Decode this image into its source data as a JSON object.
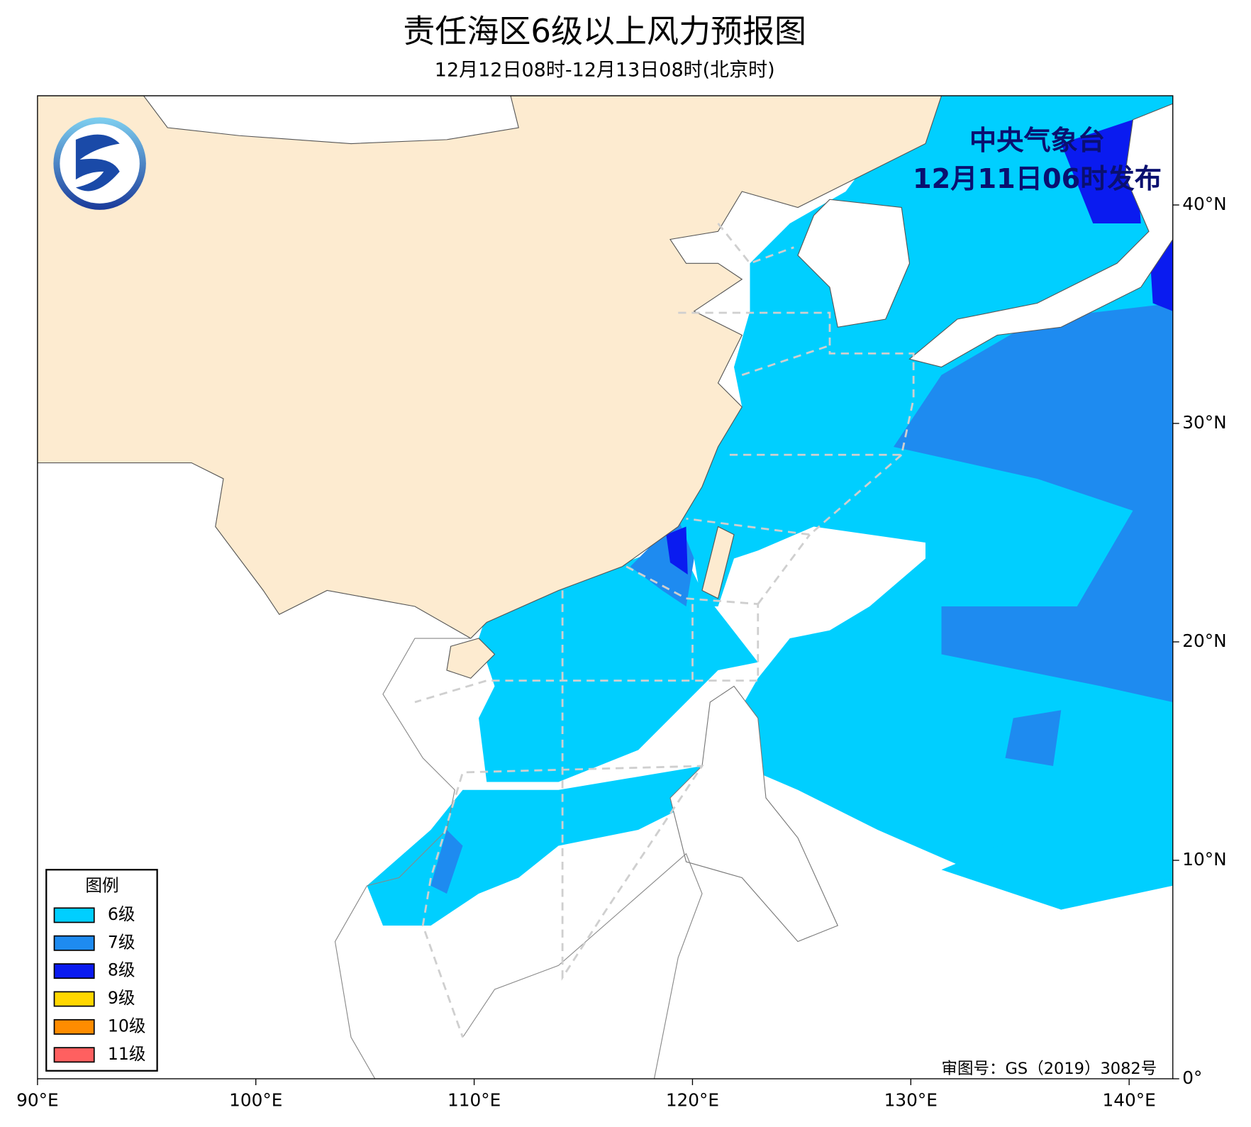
{
  "title": "责任海区6级以上风力预报图",
  "subtitle": "12月12日08时-12月13日08时(北京时)",
  "issuer": "中央气象台",
  "issue_time": "12月11日06时发布",
  "approval": "审图号：GS（2019）3082号",
  "map": {
    "lon_range": [
      90,
      142
    ],
    "lat_range": [
      0,
      45
    ],
    "lon_ticks": [
      {
        "value": 90,
        "label": "90°E"
      },
      {
        "value": 100,
        "label": "100°E"
      },
      {
        "value": 110,
        "label": "110°E"
      },
      {
        "value": 120,
        "label": "120°E"
      },
      {
        "value": 130,
        "label": "130°E"
      },
      {
        "value": 140,
        "label": "140°E"
      }
    ],
    "lat_ticks": [
      {
        "value": 0,
        "label": "0°"
      },
      {
        "value": 10,
        "label": "10°N"
      },
      {
        "value": 20,
        "label": "20°N"
      },
      {
        "value": 30,
        "label": "30°N"
      },
      {
        "value": 40,
        "label": "40°N"
      }
    ]
  },
  "legend": {
    "title": "图例",
    "items": [
      {
        "label": "6级",
        "color": "#00cfff"
      },
      {
        "label": "7级",
        "color": "#1e8bf0"
      },
      {
        "label": "8级",
        "color": "#0a1bf0"
      },
      {
        "label": "9级",
        "color": "#ffd700"
      },
      {
        "label": "10级",
        "color": "#ff8c00"
      },
      {
        "label": "11级",
        "color": "#ff6060"
      }
    ]
  }
}
